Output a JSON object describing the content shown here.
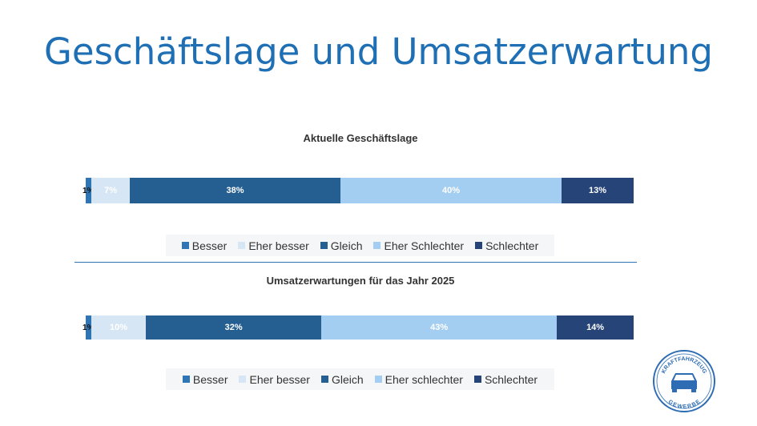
{
  "title": "Geschäftslage und Umsatzerwartung",
  "chart_data": [
    {
      "type": "bar",
      "orientation": "horizontal-stacked",
      "title": "Aktuelle Geschäftslage",
      "series": [
        {
          "name": "Besser",
          "value": 1,
          "label": "1%",
          "color": "#2e75b6"
        },
        {
          "name": "Eher besser",
          "value": 7,
          "label": "7%",
          "color": "#d6e6f4"
        },
        {
          "name": "Gleich",
          "value": 38,
          "label": "38%",
          "color": "#255e91"
        },
        {
          "name": "Eher Schlechter",
          "value": 40,
          "label": "40%",
          "color": "#a3cef1"
        },
        {
          "name": "Schlechter",
          "value": 13,
          "label": "13%",
          "color": "#264478"
        }
      ],
      "legend": "bottom"
    },
    {
      "type": "bar",
      "orientation": "horizontal-stacked",
      "title": "Umsatzerwartungen für das Jahr 2025",
      "series": [
        {
          "name": "Besser",
          "value": 1,
          "label": "1%",
          "color": "#2e75b6"
        },
        {
          "name": "Eher besser",
          "value": 10,
          "label": "10%",
          "color": "#d6e6f4"
        },
        {
          "name": "Gleich",
          "value": 32,
          "label": "32%",
          "color": "#255e91"
        },
        {
          "name": "Eher schlechter",
          "value": 43,
          "label": "43%",
          "color": "#a3cef1"
        },
        {
          "name": "Schlechter",
          "value": 14,
          "label": "14%",
          "color": "#264478"
        }
      ],
      "legend": "bottom"
    }
  ],
  "logo": {
    "top_text": "KRAFTFAHRZEUG",
    "bottom_text": "GEWERBE",
    "color": "#2e6db4"
  }
}
